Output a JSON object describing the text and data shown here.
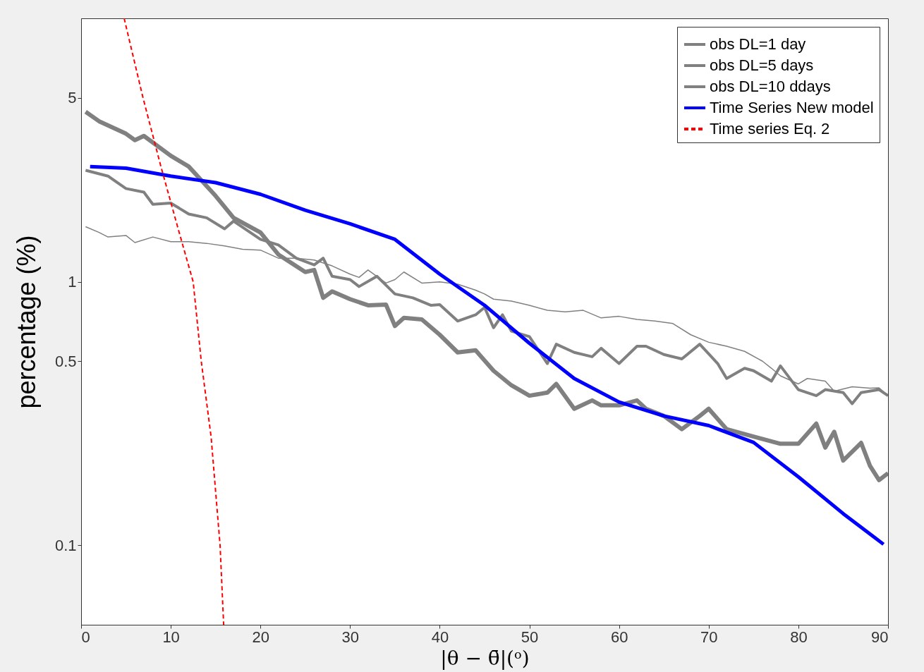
{
  "chart_data": {
    "type": "line",
    "xlabel": "|θ − θ̄|(ᵒ)",
    "ylabel": "percentage (%)",
    "xlim": [
      0,
      90
    ],
    "xticks": [
      0,
      10,
      20,
      30,
      40,
      50,
      60,
      70,
      80,
      90
    ],
    "ylim": [
      0.05,
      10
    ],
    "yticks": [
      0.1,
      0.5,
      1,
      5
    ],
    "log": "y",
    "grid": false,
    "legend": "top right",
    "line_style": "solid",
    "series": [
      {
        "name": "obs DL=1 day",
        "color": "#808080",
        "x": [
          0.5,
          2,
          5,
          6,
          7,
          10,
          12,
          15,
          17,
          20,
          22,
          25,
          26,
          27,
          28,
          30,
          32,
          34,
          35,
          36,
          38,
          40,
          42,
          44,
          46,
          48,
          50,
          52,
          53,
          55,
          57,
          58,
          60,
          62,
          63,
          65,
          67,
          69,
          70,
          72,
          75,
          78,
          80,
          82,
          83,
          84,
          85,
          87,
          88,
          89,
          90
        ],
        "values": [
          4.42,
          4.07,
          3.65,
          3.45,
          3.58,
          3.01,
          2.74,
          2.12,
          1.75,
          1.54,
          1.27,
          1.09,
          1.11,
          0.87,
          0.92,
          0.86,
          0.815,
          0.82,
          0.68,
          0.73,
          0.72,
          0.63,
          0.54,
          0.55,
          0.46,
          0.405,
          0.37,
          0.38,
          0.41,
          0.33,
          0.355,
          0.34,
          0.34,
          0.355,
          0.33,
          0.31,
          0.276,
          0.31,
          0.33,
          0.276,
          0.259,
          0.243,
          0.243,
          0.29,
          0.235,
          0.27,
          0.21,
          0.245,
          0.2,
          0.177,
          0.188
        ]
      },
      {
        "name": "obs DL=5 days",
        "color": "#808080",
        "x": [
          0.5,
          3,
          5,
          7,
          8,
          10,
          12,
          14,
          16,
          17,
          20,
          22,
          24,
          26,
          27,
          28,
          30,
          31,
          33,
          35,
          37,
          39,
          40,
          42,
          44,
          45,
          46,
          47,
          48,
          50,
          52,
          53,
          55,
          57,
          58,
          60,
          62,
          63,
          65,
          67,
          69,
          71,
          72,
          74,
          75,
          77,
          78,
          80,
          82,
          83,
          85,
          86,
          87,
          89,
          90
        ],
        "values": [
          2.65,
          2.52,
          2.26,
          2.19,
          1.97,
          1.99,
          1.81,
          1.75,
          1.59,
          1.7,
          1.45,
          1.38,
          1.23,
          1.16,
          1.23,
          1.05,
          1.02,
          0.96,
          1.05,
          0.9,
          0.87,
          0.815,
          0.82,
          0.71,
          0.75,
          0.8,
          0.67,
          0.75,
          0.65,
          0.62,
          0.49,
          0.58,
          0.54,
          0.52,
          0.56,
          0.49,
          0.57,
          0.57,
          0.53,
          0.51,
          0.58,
          0.49,
          0.43,
          0.47,
          0.46,
          0.42,
          0.48,
          0.39,
          0.37,
          0.39,
          0.38,
          0.345,
          0.38,
          0.39,
          0.37
        ]
      },
      {
        "name": "obs DL=10 ddays",
        "color": "#808080",
        "x": [
          0.5,
          2,
          3,
          5,
          6,
          8,
          10,
          12,
          14,
          16,
          18,
          20,
          22,
          24,
          26,
          28,
          30,
          31,
          32,
          34,
          35,
          36,
          38,
          40,
          42,
          44,
          45,
          46,
          48,
          50,
          52,
          54,
          56,
          58,
          60,
          62,
          64,
          66,
          68,
          70,
          72,
          74,
          76,
          77,
          78,
          80,
          81,
          83,
          84,
          86,
          88,
          89,
          90
        ],
        "values": [
          1.62,
          1.54,
          1.48,
          1.5,
          1.41,
          1.48,
          1.42,
          1.42,
          1.4,
          1.37,
          1.33,
          1.32,
          1.23,
          1.23,
          1.21,
          1.15,
          1.07,
          1.04,
          1.11,
          0.99,
          1.02,
          1.09,
          0.99,
          1.0,
          0.98,
          0.93,
          0.9,
          0.86,
          0.845,
          0.815,
          0.78,
          0.77,
          0.78,
          0.73,
          0.74,
          0.72,
          0.71,
          0.695,
          0.63,
          0.59,
          0.57,
          0.545,
          0.5,
          0.47,
          0.44,
          0.41,
          0.43,
          0.42,
          0.385,
          0.4,
          0.395,
          0.396,
          0.37
        ]
      },
      {
        "name": "Time Series New model",
        "color": "#0000ff",
        "x": [
          1,
          5,
          10,
          15,
          20,
          25,
          30,
          35,
          40,
          45,
          50,
          55,
          60,
          65,
          70,
          75,
          80,
          85,
          89.5
        ],
        "values": [
          2.74,
          2.7,
          2.52,
          2.38,
          2.15,
          1.87,
          1.66,
          1.45,
          1.07,
          0.815,
          0.585,
          0.43,
          0.35,
          0.31,
          0.285,
          0.246,
          0.182,
          0.132,
          0.101
        ]
      },
      {
        "name": "Time series Eq. 2",
        "color": "#ff0000",
        "line_style": "dashed",
        "x": [
          4.8,
          6.9,
          8.9,
          10.8,
          12.5,
          13.4,
          14.5,
          15.5,
          15.9
        ],
        "values": [
          10,
          5,
          2.74,
          1.6,
          1,
          0.5,
          0.258,
          0.1,
          0.05
        ]
      }
    ]
  }
}
